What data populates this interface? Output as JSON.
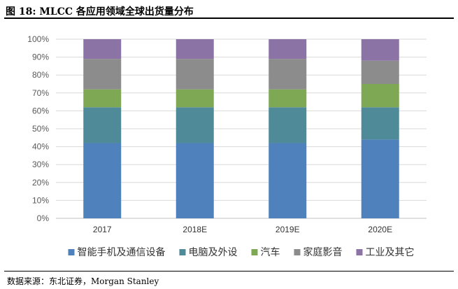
{
  "figure": {
    "title": "图  18:  MLCC 各应用领域全球出货量分布",
    "source": "数据来源：东北证券，Morgan Stanley"
  },
  "chart_data": {
    "type": "bar",
    "stacked": true,
    "percent": true,
    "categories": [
      "2017",
      "2018E",
      "2019E",
      "2020E"
    ],
    "y_ticks": [
      "0%",
      "10%",
      "20%",
      "30%",
      "40%",
      "50%",
      "60%",
      "70%",
      "80%",
      "90%",
      "100%"
    ],
    "ylim": [
      0,
      100
    ],
    "grid": true,
    "legend_position": "bottom",
    "series": [
      {
        "name": "智能手机及通信设备",
        "color": "#4F81BD",
        "values": [
          42,
          42,
          42,
          44
        ]
      },
      {
        "name": "电脑及外设",
        "color": "#4F8A99",
        "values": [
          20,
          20,
          20,
          18
        ]
      },
      {
        "name": "汽车",
        "color": "#7FA855",
        "values": [
          10,
          10,
          10,
          13
        ]
      },
      {
        "name": "家庭影音",
        "color": "#8C8C8C",
        "values": [
          17,
          17,
          17,
          13
        ]
      },
      {
        "name": "工业及其它",
        "color": "#8C73A6",
        "values": [
          11,
          11,
          11,
          12
        ]
      }
    ]
  }
}
